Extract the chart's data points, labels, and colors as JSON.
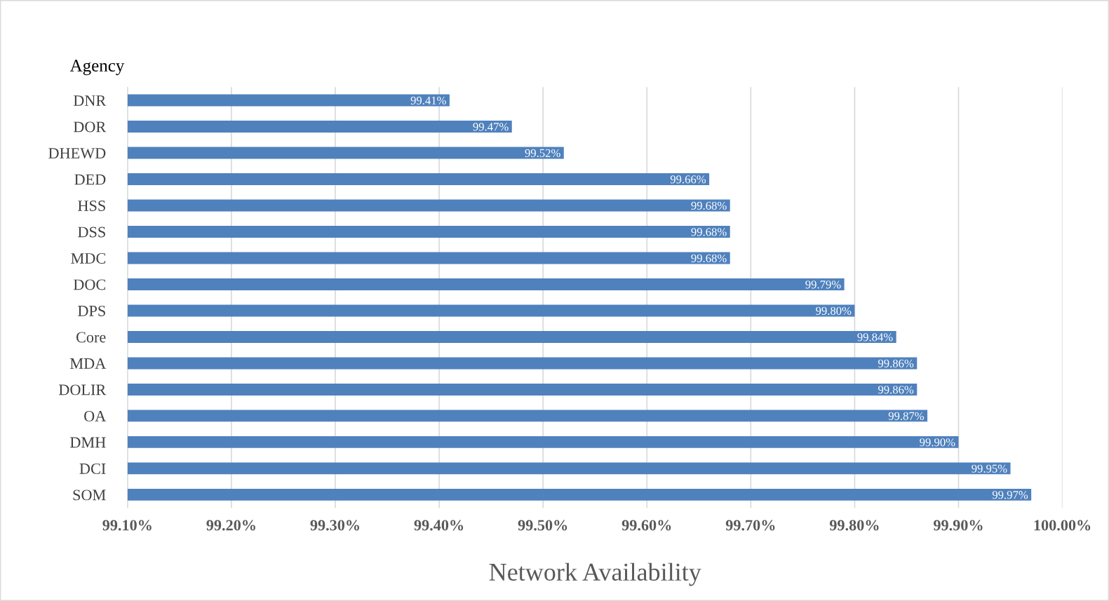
{
  "chart_data": {
    "type": "bar",
    "orientation": "horizontal",
    "ylabel": "Agency",
    "xlabel": "Network Availability",
    "categories": [
      "DNR",
      "DOR",
      "DHEWD",
      "DED",
      "HSS",
      "DSS",
      "MDC",
      "DOC",
      "DPS",
      "Core",
      "MDA",
      "DOLIR",
      "OA",
      "DMH",
      "DCI",
      "SOM"
    ],
    "values": [
      99.41,
      99.47,
      99.52,
      99.66,
      99.68,
      99.68,
      99.68,
      99.79,
      99.8,
      99.84,
      99.86,
      99.86,
      99.87,
      99.9,
      99.95,
      99.97
    ],
    "value_labels": [
      "99.41%",
      "99.47%",
      "99.52%",
      "99.66%",
      "99.68%",
      "99.68%",
      "99.68%",
      "99.79%",
      "99.80%",
      "99.84%",
      "99.86%",
      "99.86%",
      "99.87%",
      "99.90%",
      "99.95%",
      "99.97%"
    ],
    "color": "#4f81bd",
    "xlim": [
      99.1,
      100.0
    ],
    "xticks": [
      {
        "value": 99.1,
        "label": "99.10%"
      },
      {
        "value": 99.2,
        "label": "99.20%"
      },
      {
        "value": 99.3,
        "label": "99.30%"
      },
      {
        "value": 99.4,
        "label": "99.40%"
      },
      {
        "value": 99.5,
        "label": "99.50%"
      },
      {
        "value": 99.6,
        "label": "99.60%"
      },
      {
        "value": 99.7,
        "label": "99.70%"
      },
      {
        "value": 99.8,
        "label": "99.80%"
      },
      {
        "value": 99.9,
        "label": "99.90%"
      },
      {
        "value": 100.0,
        "label": "100.00%"
      }
    ],
    "grid": "x"
  }
}
